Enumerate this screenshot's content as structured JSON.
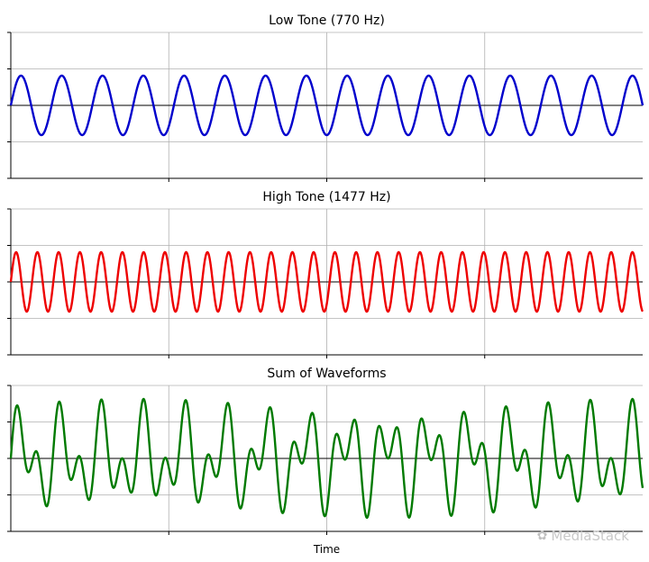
{
  "chart_data": [
    {
      "type": "line",
      "title": "Low Tone (770 Hz)",
      "xlabel": "",
      "ylabel": "",
      "frequency_hz": 770,
      "ylim": [
        -2,
        2
      ],
      "grid": true,
      "series": [
        {
          "color": "#0000cc",
          "amplitude": 1,
          "cycles_shown": 15.5
        }
      ]
    },
    {
      "type": "line",
      "title": "High Tone (1477 Hz)",
      "xlabel": "",
      "ylabel": "",
      "frequency_hz": 1477,
      "ylim": [
        -2,
        2
      ],
      "grid": true,
      "series": [
        {
          "color": "#ee0000",
          "amplitude": 1,
          "cycles_shown": 29.7
        }
      ]
    },
    {
      "type": "line",
      "title": "Sum of Waveforms",
      "xlabel": "Time",
      "ylabel": "",
      "ylim": [
        -2,
        2
      ],
      "grid": true,
      "series": [
        {
          "color": "#007a00",
          "components_hz": [
            770,
            1477
          ]
        }
      ]
    }
  ],
  "watermark": {
    "text": "MediaStack"
  }
}
